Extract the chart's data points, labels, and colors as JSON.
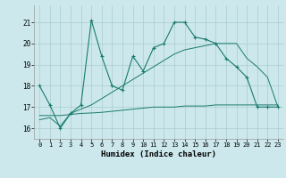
{
  "xlabel": "Humidex (Indice chaleur)",
  "background_color": "#cce8ec",
  "grid_color": "#aacccc",
  "line_color": "#1a7a6e",
  "xlim": [
    -0.5,
    23.5
  ],
  "ylim": [
    15.5,
    21.8
  ],
  "yticks": [
    16,
    17,
    18,
    19,
    20,
    21
  ],
  "xticks": [
    0,
    1,
    2,
    3,
    4,
    5,
    6,
    7,
    8,
    9,
    10,
    11,
    12,
    13,
    14,
    15,
    16,
    17,
    18,
    19,
    20,
    21,
    22,
    23
  ],
  "line1_x": [
    0,
    1,
    2,
    3,
    4,
    5,
    6,
    7,
    8,
    9,
    10,
    11,
    12,
    13,
    14,
    15,
    16,
    17,
    18,
    19,
    20,
    21,
    22,
    23
  ],
  "line1_y": [
    18.0,
    17.1,
    16.0,
    16.7,
    17.1,
    21.1,
    19.4,
    18.0,
    17.8,
    19.4,
    18.7,
    19.8,
    20.0,
    21.0,
    21.0,
    20.3,
    20.2,
    20.0,
    19.3,
    18.9,
    18.4,
    17.0,
    17.0,
    17.0
  ],
  "line2_x": [
    0,
    1,
    2,
    3,
    4,
    5,
    6,
    7,
    8,
    9,
    10,
    11,
    12,
    13,
    14,
    15,
    16,
    17,
    18,
    19,
    20,
    21,
    22,
    23
  ],
  "line2_y": [
    16.6,
    16.6,
    16.6,
    16.65,
    16.7,
    16.72,
    16.75,
    16.8,
    16.85,
    16.9,
    16.95,
    17.0,
    17.0,
    17.0,
    17.05,
    17.05,
    17.05,
    17.1,
    17.1,
    17.1,
    17.1,
    17.1,
    17.1,
    17.1
  ],
  "line3_x": [
    0,
    1,
    2,
    3,
    4,
    5,
    6,
    7,
    8,
    9,
    10,
    11,
    12,
    13,
    14,
    15,
    16,
    17,
    18,
    19,
    20,
    21,
    22,
    23
  ],
  "line3_y": [
    16.4,
    16.5,
    16.1,
    16.7,
    16.9,
    17.1,
    17.4,
    17.7,
    18.0,
    18.3,
    18.6,
    18.9,
    19.2,
    19.5,
    19.7,
    19.8,
    19.9,
    20.0,
    20.0,
    20.0,
    19.3,
    18.9,
    18.4,
    17.0
  ]
}
